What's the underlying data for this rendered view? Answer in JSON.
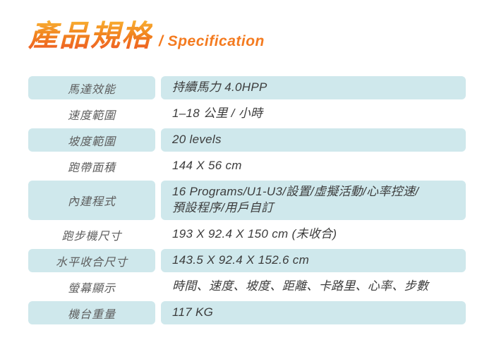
{
  "header": {
    "title_zh": "產品規格",
    "title_en": "/ Specification"
  },
  "colors": {
    "title_gradient_top": "#f9b233",
    "title_gradient_bottom": "#ee5a24",
    "title_en_orange": "#f47b20",
    "row_highlight_blue": "#cfe8ec",
    "label_text": "#5d5d5d",
    "value_text": "#3c3c3c",
    "background": "#ffffff"
  },
  "table": {
    "rows": [
      {
        "label": "馬達效能",
        "value": "持續馬力 4.0HPP",
        "highlight": true
      },
      {
        "label": "速度範圍",
        "value": "1–18 公里 / 小時",
        "highlight": false
      },
      {
        "label": "坡度範圍",
        "value": "20 levels",
        "highlight": true
      },
      {
        "label": "跑帶面積",
        "value": "144 X 56 cm",
        "highlight": false
      },
      {
        "label": "內建程式",
        "value": "16 Programs/U1-U3/設置/虛擬活動/心率控速/\n預設程序/用戶自訂",
        "highlight": true
      },
      {
        "label": "跑步機尺寸",
        "value": "193 X 92.4 X 150 cm (未收合)",
        "highlight": false
      },
      {
        "label": "水平收合尺寸",
        "value": "143.5 X 92.4 X 152.6 cm",
        "highlight": true
      },
      {
        "label": "螢幕顯示",
        "value": "時間、速度、坡度、距離、卡路里、心率、步數",
        "highlight": false
      },
      {
        "label": "機台重量",
        "value": "117 KG",
        "highlight": true
      }
    ]
  }
}
